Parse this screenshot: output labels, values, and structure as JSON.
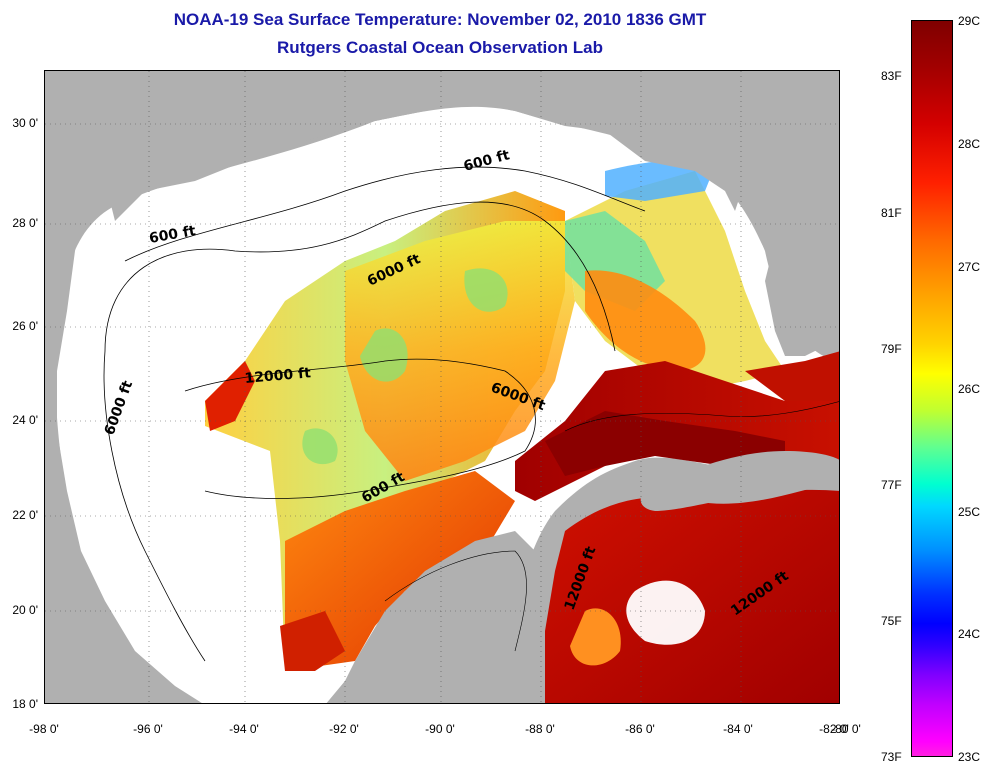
{
  "title_line1": "NOAA-19 Sea Surface Temperature:  November 02, 2010 1836 GMT",
  "title_line2": "Rutgers Coastal Ocean Observation Lab",
  "latitude_labels": [
    "30 0'",
    "28 0'",
    "26 0'",
    "24 0'",
    "22 0'",
    "20 0'",
    "18 0'"
  ],
  "longitude_labels": [
    "-98 0'",
    "-96 0'",
    "-94 0'",
    "-92 0'",
    "-90 0'",
    "-88 0'",
    "-86 0'",
    "-84 0'",
    "-82 0'",
    "-80 0'"
  ],
  "contour_labels": [
    "600 ft",
    "600 ft",
    "6000 ft",
    "6000 ft",
    "12000 ft",
    "6000 ft",
    "600 ft",
    "12000 ft",
    "12000 ft"
  ],
  "colorbar": {
    "celsius_labels": [
      "29C",
      "28C",
      "27C",
      "26C",
      "25C",
      "24C",
      "23C"
    ],
    "fahrenheit_labels": [
      "83F",
      "81F",
      "79F",
      "77F",
      "75F",
      "73F"
    ],
    "range_celsius": [
      23,
      29
    ]
  },
  "colors": {
    "title": "#1a1aa8",
    "land": "#b0b0b0",
    "no_data": "#ffffff",
    "warm": "#8b0000",
    "cool": "#00c8ff"
  }
}
